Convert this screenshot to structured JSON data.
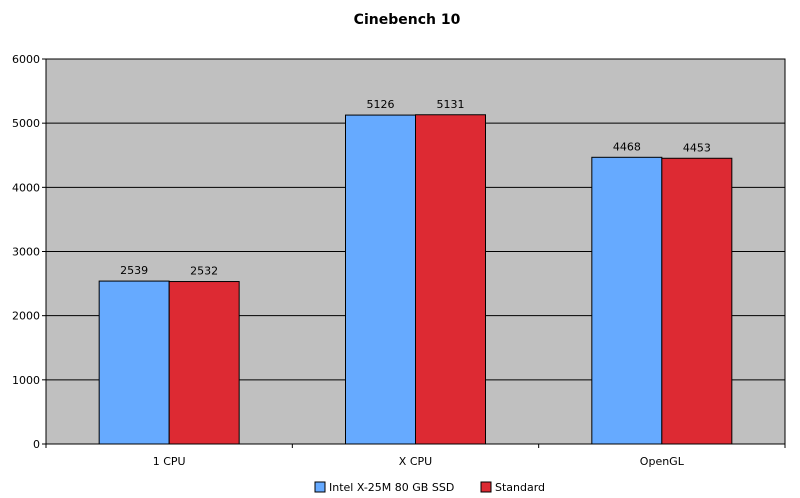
{
  "chart_data": {
    "type": "bar",
    "title": "Cinebench 10",
    "categories": [
      "1 CPU",
      "X CPU",
      "OpenGL"
    ],
    "series": [
      {
        "name": "Intel X-25M 80 GB SSD",
        "color": "#66aaff",
        "values": [
          2539,
          5126,
          4468
        ]
      },
      {
        "name": "Standard",
        "color": "#dd2a33",
        "values": [
          2532,
          5131,
          4453
        ]
      }
    ],
    "yticks": [
      0,
      1000,
      2000,
      3000,
      4000,
      5000,
      6000
    ],
    "ylim": [
      0,
      6000
    ],
    "grid": true,
    "plot_background": "#c0c0c0",
    "legend_position": "bottom"
  }
}
